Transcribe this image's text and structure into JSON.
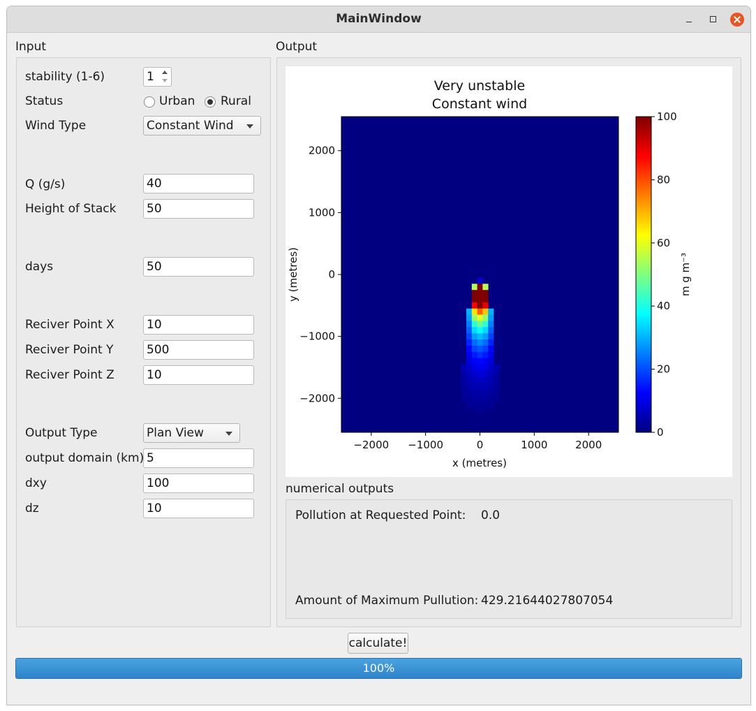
{
  "window": {
    "title": "MainWindow"
  },
  "input": {
    "group_title": "Input",
    "stability": {
      "label": "stability (1-6)",
      "value": "1"
    },
    "status": {
      "label": "Status",
      "options": [
        "Urban",
        "Rural"
      ],
      "selected": "Rural"
    },
    "wind_type": {
      "label": "Wind Type",
      "value": "Constant Wind"
    },
    "q": {
      "label": "Q (g/s)",
      "value": "40"
    },
    "stack_height": {
      "label": "Height of Stack",
      "value": "50"
    },
    "days": {
      "label": "days",
      "value": "50"
    },
    "receiver_x": {
      "label": "Reciver Point X",
      "value": "10"
    },
    "receiver_y": {
      "label": "Reciver Point Y",
      "value": "500"
    },
    "receiver_z": {
      "label": "Reciver Point Z",
      "value": "10"
    },
    "output_type": {
      "label": "Output Type",
      "value": "Plan View"
    },
    "output_domain": {
      "label": "output domain (km)",
      "value": "5"
    },
    "dxy": {
      "label": "dxy",
      "value": "100"
    },
    "dz": {
      "label": "dz",
      "value": "10"
    }
  },
  "output": {
    "group_title": "Output",
    "numerical_title": "numerical outputs",
    "requested_point_label": "Pollution at Requested Point:",
    "requested_point_value": "0.0",
    "max_pollution_label": "Amount of Maximum Pullution:",
    "max_pollution_value": "429.21644027807054"
  },
  "calculate_label": "calculate!",
  "progress": {
    "value": 100,
    "text": "100%"
  },
  "colors": {
    "accent": "#2d84cc",
    "close_button": "#e95420"
  },
  "chart_data": {
    "type": "heatmap",
    "title": [
      "Very unstable",
      "Constant wind"
    ],
    "xlabel": "x (metres)",
    "ylabel": "y (metres)",
    "xlim": [
      -2550,
      2550
    ],
    "ylim": [
      -2550,
      2550
    ],
    "xticks": [
      -2000,
      -1000,
      0,
      1000,
      2000
    ],
    "yticks": [
      -2000,
      -1000,
      0,
      1000,
      2000
    ],
    "xtick_labels": [
      "−2000",
      "−1000",
      "0",
      "1000",
      "2000"
    ],
    "ytick_labels": [
      "−2000",
      "−1000",
      "0",
      "1000",
      "2000"
    ],
    "colorbar": {
      "label": "m g m⁻³",
      "range": [
        0,
        100
      ],
      "ticks": [
        0,
        20,
        40,
        60,
        80,
        100
      ],
      "tick_labels": [
        "0",
        "20",
        "40",
        "60",
        "80",
        "100"
      ],
      "colormap": "jet"
    },
    "cell_size": 100,
    "background_value": 0,
    "cells": [
      {
        "x": 0,
        "y": -100,
        "v": 8
      },
      {
        "x": -100,
        "y": -200,
        "v": 55
      },
      {
        "x": 0,
        "y": -200,
        "v": 100
      },
      {
        "x": 100,
        "y": -200,
        "v": 55
      },
      {
        "x": -100,
        "y": -300,
        "v": 100
      },
      {
        "x": 0,
        "y": -300,
        "v": 100
      },
      {
        "x": 100,
        "y": -300,
        "v": 100
      },
      {
        "x": -100,
        "y": -400,
        "v": 100
      },
      {
        "x": 0,
        "y": -400,
        "v": 100
      },
      {
        "x": 100,
        "y": -400,
        "v": 100
      },
      {
        "x": -100,
        "y": -500,
        "v": 88
      },
      {
        "x": 0,
        "y": -500,
        "v": 100
      },
      {
        "x": 100,
        "y": -500,
        "v": 90
      },
      {
        "x": -200,
        "y": -600,
        "v": 30
      },
      {
        "x": -100,
        "y": -600,
        "v": 65
      },
      {
        "x": 0,
        "y": -600,
        "v": 78
      },
      {
        "x": 100,
        "y": -600,
        "v": 68
      },
      {
        "x": 200,
        "y": -600,
        "v": 30
      },
      {
        "x": -200,
        "y": -700,
        "v": 28
      },
      {
        "x": -100,
        "y": -700,
        "v": 52
      },
      {
        "x": 0,
        "y": -700,
        "v": 60
      },
      {
        "x": 100,
        "y": -700,
        "v": 52
      },
      {
        "x": 200,
        "y": -700,
        "v": 28
      },
      {
        "x": -200,
        "y": -800,
        "v": 25
      },
      {
        "x": -100,
        "y": -800,
        "v": 42
      },
      {
        "x": 0,
        "y": -800,
        "v": 48
      },
      {
        "x": 100,
        "y": -800,
        "v": 42
      },
      {
        "x": 200,
        "y": -800,
        "v": 25
      },
      {
        "x": -200,
        "y": -900,
        "v": 22
      },
      {
        "x": -100,
        "y": -900,
        "v": 34
      },
      {
        "x": 0,
        "y": -900,
        "v": 38
      },
      {
        "x": 100,
        "y": -900,
        "v": 34
      },
      {
        "x": 200,
        "y": -900,
        "v": 22
      },
      {
        "x": -200,
        "y": -1000,
        "v": 19
      },
      {
        "x": -100,
        "y": -1000,
        "v": 28
      },
      {
        "x": 0,
        "y": -1000,
        "v": 31
      },
      {
        "x": 100,
        "y": -1000,
        "v": 28
      },
      {
        "x": 200,
        "y": -1000,
        "v": 19
      },
      {
        "x": -200,
        "y": -1100,
        "v": 16
      },
      {
        "x": -100,
        "y": -1100,
        "v": 23
      },
      {
        "x": 0,
        "y": -1100,
        "v": 26
      },
      {
        "x": 100,
        "y": -1100,
        "v": 23
      },
      {
        "x": 200,
        "y": -1100,
        "v": 16
      },
      {
        "x": -200,
        "y": -1200,
        "v": 13
      },
      {
        "x": -100,
        "y": -1200,
        "v": 19
      },
      {
        "x": 0,
        "y": -1200,
        "v": 21
      },
      {
        "x": 100,
        "y": -1200,
        "v": 19
      },
      {
        "x": 200,
        "y": -1200,
        "v": 13
      },
      {
        "x": -200,
        "y": -1300,
        "v": 11
      },
      {
        "x": -100,
        "y": -1300,
        "v": 15
      },
      {
        "x": 0,
        "y": -1300,
        "v": 17
      },
      {
        "x": 100,
        "y": -1300,
        "v": 15
      },
      {
        "x": 200,
        "y": -1300,
        "v": 11
      },
      {
        "x": -200,
        "y": -1400,
        "v": 9
      },
      {
        "x": -100,
        "y": -1400,
        "v": 12
      },
      {
        "x": 0,
        "y": -1400,
        "v": 13
      },
      {
        "x": 100,
        "y": -1400,
        "v": 12
      },
      {
        "x": 200,
        "y": -1400,
        "v": 9
      },
      {
        "x": -300,
        "y": -1500,
        "v": 5
      },
      {
        "x": -200,
        "y": -1500,
        "v": 7
      },
      {
        "x": -100,
        "y": -1500,
        "v": 10
      },
      {
        "x": 0,
        "y": -1500,
        "v": 11
      },
      {
        "x": 100,
        "y": -1500,
        "v": 10
      },
      {
        "x": 200,
        "y": -1500,
        "v": 7
      },
      {
        "x": 300,
        "y": -1500,
        "v": 5
      },
      {
        "x": -300,
        "y": -1600,
        "v": 4
      },
      {
        "x": -200,
        "y": -1600,
        "v": 6
      },
      {
        "x": -100,
        "y": -1600,
        "v": 8
      },
      {
        "x": 0,
        "y": -1600,
        "v": 9
      },
      {
        "x": 100,
        "y": -1600,
        "v": 8
      },
      {
        "x": 200,
        "y": -1600,
        "v": 6
      },
      {
        "x": 300,
        "y": -1600,
        "v": 4
      },
      {
        "x": -300,
        "y": -1700,
        "v": 3
      },
      {
        "x": -200,
        "y": -1700,
        "v": 5
      },
      {
        "x": -100,
        "y": -1700,
        "v": 6
      },
      {
        "x": 0,
        "y": -1700,
        "v": 7
      },
      {
        "x": 100,
        "y": -1700,
        "v": 6
      },
      {
        "x": 200,
        "y": -1700,
        "v": 5
      },
      {
        "x": 300,
        "y": -1700,
        "v": 3
      },
      {
        "x": -300,
        "y": -1800,
        "v": 3
      },
      {
        "x": -200,
        "y": -1800,
        "v": 4
      },
      {
        "x": -100,
        "y": -1800,
        "v": 5
      },
      {
        "x": 0,
        "y": -1800,
        "v": 5
      },
      {
        "x": 100,
        "y": -1800,
        "v": 5
      },
      {
        "x": 200,
        "y": -1800,
        "v": 4
      },
      {
        "x": 300,
        "y": -1800,
        "v": 3
      },
      {
        "x": -300,
        "y": -1900,
        "v": 2
      },
      {
        "x": -200,
        "y": -1900,
        "v": 3
      },
      {
        "x": -100,
        "y": -1900,
        "v": 4
      },
      {
        "x": 0,
        "y": -1900,
        "v": 4
      },
      {
        "x": 100,
        "y": -1900,
        "v": 4
      },
      {
        "x": 200,
        "y": -1900,
        "v": 3
      },
      {
        "x": 300,
        "y": -1900,
        "v": 2
      },
      {
        "x": -300,
        "y": -2000,
        "v": 2
      },
      {
        "x": -200,
        "y": -2000,
        "v": 2
      },
      {
        "x": -100,
        "y": -2000,
        "v": 3
      },
      {
        "x": 0,
        "y": -2000,
        "v": 3
      },
      {
        "x": 100,
        "y": -2000,
        "v": 3
      },
      {
        "x": 200,
        "y": -2000,
        "v": 2
      },
      {
        "x": 300,
        "y": -2000,
        "v": 2
      },
      {
        "x": -200,
        "y": -2100,
        "v": 2
      },
      {
        "x": -100,
        "y": -2100,
        "v": 2
      },
      {
        "x": 0,
        "y": -2100,
        "v": 2
      },
      {
        "x": 100,
        "y": -2100,
        "v": 2
      },
      {
        "x": 200,
        "y": -2100,
        "v": 2
      },
      {
        "x": -100,
        "y": -2200,
        "v": 1
      },
      {
        "x": 0,
        "y": -2200,
        "v": 1
      },
      {
        "x": 100,
        "y": -2200,
        "v": 1
      }
    ]
  }
}
